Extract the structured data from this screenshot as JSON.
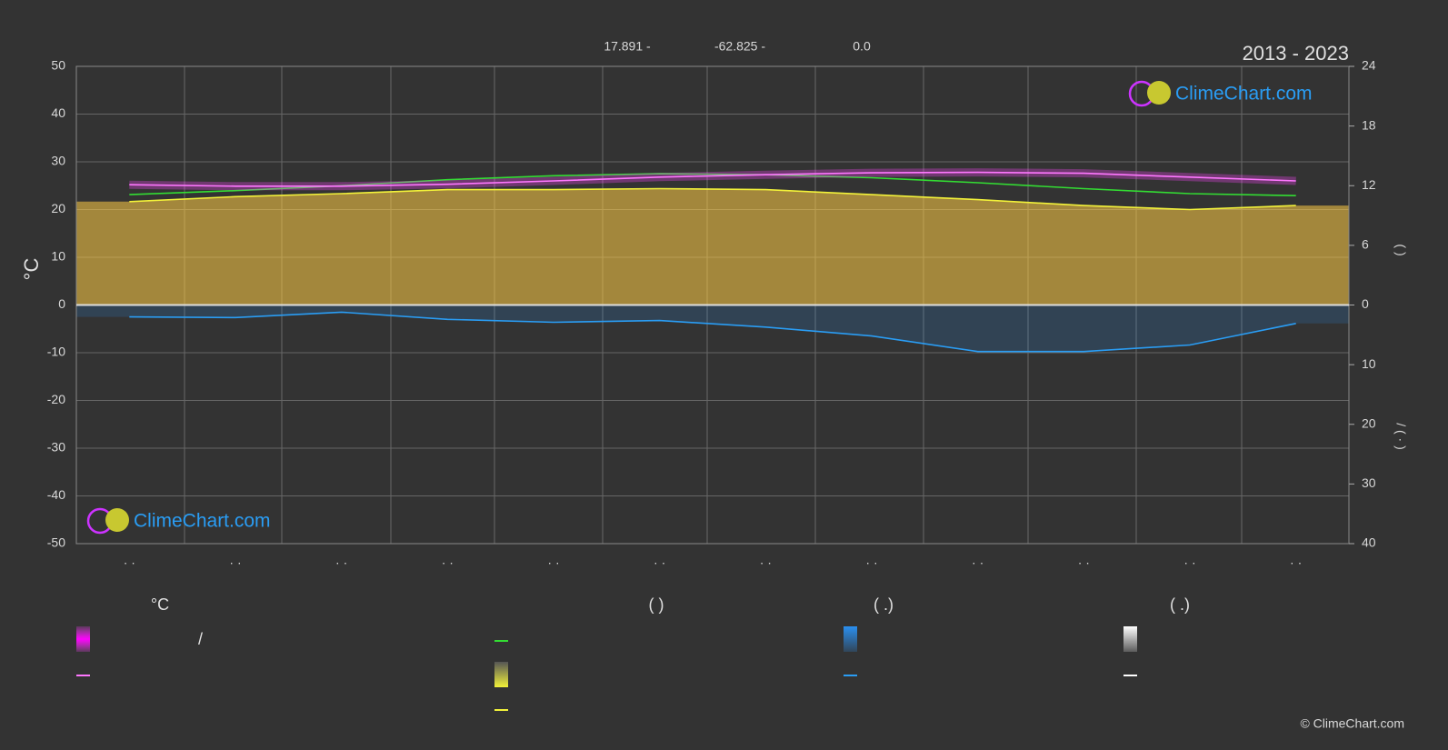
{
  "chart_data": {
    "type": "line",
    "title": "2013 - 2023",
    "header": [
      "17.891 -",
      "-62.825 -",
      "0.0"
    ],
    "ylabel": "°C",
    "y2label": "(     )",
    "y3label": "/    ( · )",
    "categories": [
      "· ·",
      "· ·",
      "· ·",
      "· ·",
      "· ·",
      "· ·",
      "· ·",
      "· ·",
      "· ·",
      "· ·",
      "· ·",
      "· ·"
    ],
    "ylim": [
      -50,
      50
    ],
    "yticks": [
      -50,
      -40,
      -30,
      -20,
      -10,
      0,
      10,
      20,
      30,
      40,
      50
    ],
    "y2lim": [
      0,
      24
    ],
    "y2ticks": [
      0,
      6,
      12,
      18,
      24
    ],
    "y3lim": [
      0,
      40
    ],
    "y3ticks": [
      0,
      10,
      20,
      30,
      40
    ],
    "grid": true,
    "series": [
      {
        "color": "#ffcc44",
        "axis": "y2",
        "area": true,
        "line": "#f2f23a",
        "values": [
          10.4,
          10.9,
          11.2,
          11.6,
          11.6,
          11.7,
          11.6,
          11.1,
          10.6,
          10.0,
          9.6,
          10.0
        ]
      },
      {
        "color": "#2a8ff0",
        "axis": "y3",
        "area": true,
        "line": "#2a9df4",
        "values": [
          2.0,
          2.1,
          1.2,
          2.4,
          2.9,
          2.6,
          3.7,
          5.2,
          7.8,
          7.8,
          6.7,
          3.1
        ]
      },
      {
        "color": "#33dd33",
        "axis": "y2",
        "area": false,
        "line": "#33dd33",
        "values": [
          11.1,
          11.5,
          12.0,
          12.6,
          13.0,
          13.2,
          13.1,
          12.8,
          12.3,
          11.7,
          11.2,
          11.0
        ]
      },
      {
        "color": "#ff44ff",
        "axis": "y",
        "area": false,
        "line": "#ff77ff",
        "values": [
          25.2,
          24.9,
          24.9,
          25.3,
          26.0,
          26.8,
          27.3,
          27.7,
          27.8,
          27.6,
          26.8,
          26.0
        ]
      }
    ],
    "logo": "ClimeChart.com",
    "copyright": "© ClimeChart.com",
    "legend": {
      "headers": [
        "°C",
        "(          )",
        "(   .)",
        "(   .)"
      ],
      "slash": "/"
    }
  }
}
